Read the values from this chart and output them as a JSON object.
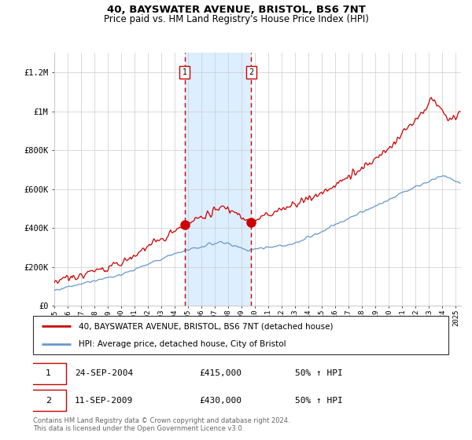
{
  "title": "40, BAYSWATER AVENUE, BRISTOL, BS6 7NT",
  "subtitle": "Price paid vs. HM Land Registry's House Price Index (HPI)",
  "ylim": [
    0,
    1300000
  ],
  "yticks": [
    0,
    200000,
    400000,
    600000,
    800000,
    1000000,
    1200000
  ],
  "ytick_labels": [
    "£0",
    "£200K",
    "£400K",
    "£600K",
    "£800K",
    "£1M",
    "£1.2M"
  ],
  "purchase1_year": 2004.73,
  "purchase1_price": 415000,
  "purchase2_year": 2009.7,
  "purchase2_price": 430000,
  "legend1": "40, BAYSWATER AVENUE, BRISTOL, BS6 7NT (detached house)",
  "legend2": "HPI: Average price, detached house, City of Bristol",
  "annotation1_date": "24-SEP-2004",
  "annotation1_price": "£415,000",
  "annotation1_hpi": "50% ↑ HPI",
  "annotation2_date": "11-SEP-2009",
  "annotation2_price": "£430,000",
  "annotation2_hpi": "50% ↑ HPI",
  "footer": "Contains HM Land Registry data © Crown copyright and database right 2024.\nThis data is licensed under the Open Government Licence v3.0.",
  "red_color": "#cc0000",
  "blue_color": "#6699cc",
  "shaded_color": "#ddeeff",
  "background_color": "#ffffff",
  "grid_color": "#cccccc"
}
